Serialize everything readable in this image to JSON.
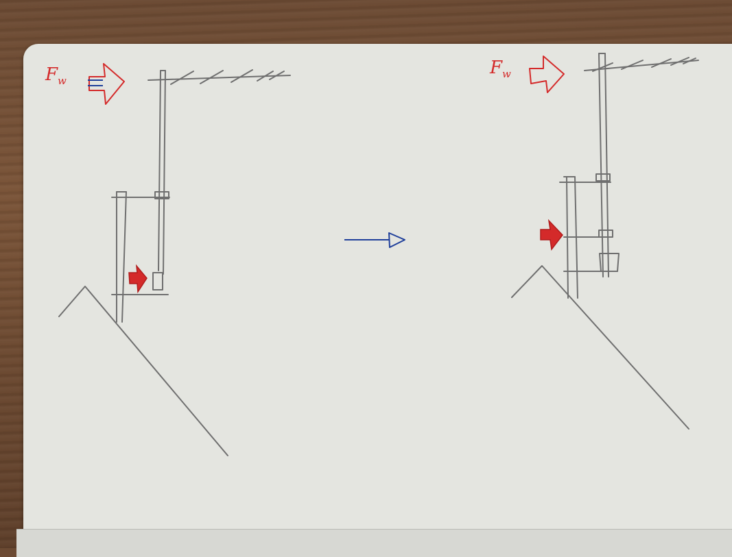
{
  "labels": {
    "left_force": "F",
    "left_force_sub": "w",
    "right_force": "F",
    "right_force_sub": "w"
  },
  "colors": {
    "pencil": "#6f6f6f",
    "red": "#d42a2a",
    "blue": "#1f3f9a",
    "paper": "#e4e5e0"
  },
  "icons": [
    "wind-force-arrow-icon",
    "load-arrow-icon",
    "transition-arrow-icon"
  ]
}
